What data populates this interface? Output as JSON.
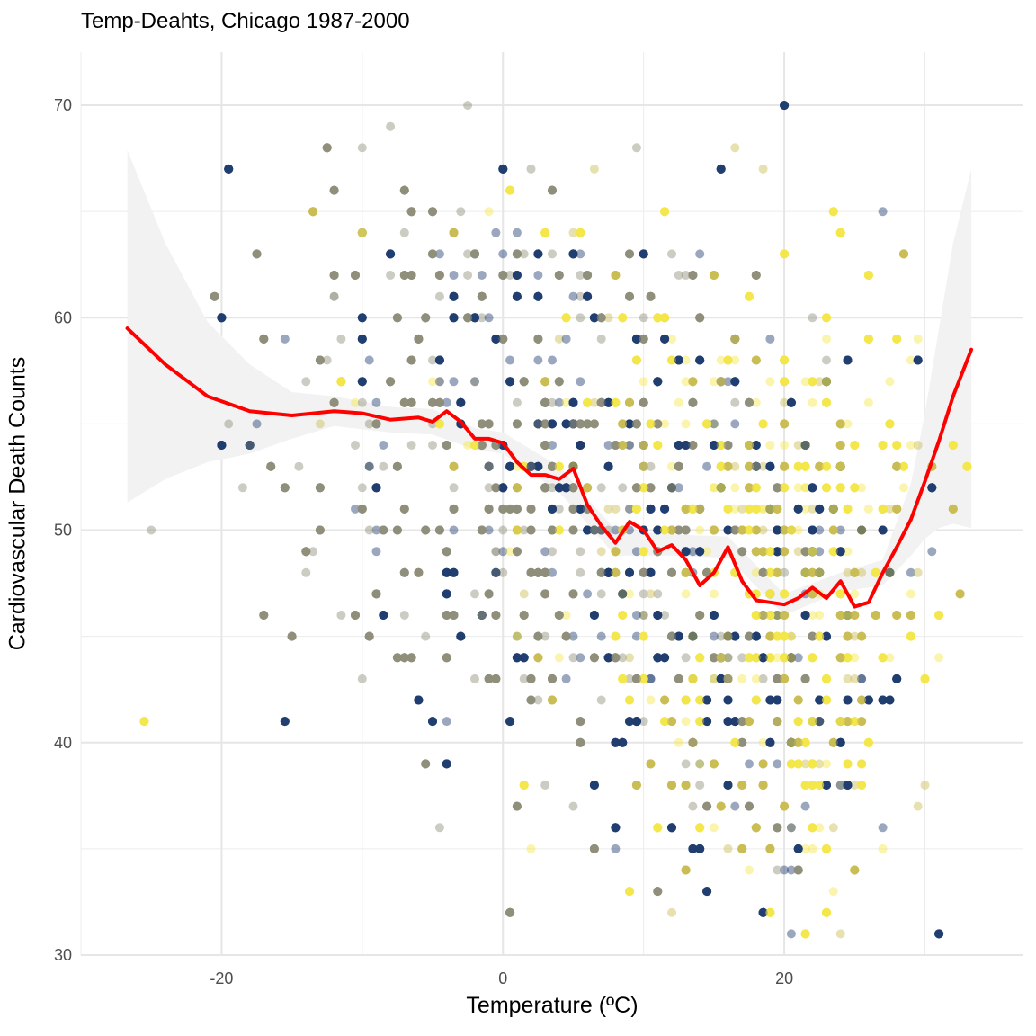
{
  "chart_data": {
    "type": "scatter",
    "title": "Temp-Deahts, Chicago 1987-2000",
    "xlabel": "Temperature (ºC)",
    "ylabel": "Cardiovascular Death Counts",
    "xlim": [
      -30,
      37
    ],
    "ylim": [
      30,
      72.5
    ],
    "x_ticks": [
      -20,
      0,
      20
    ],
    "x_tick_labels": [
      "-20",
      "0",
      "20"
    ],
    "y_ticks": [
      30,
      40,
      50,
      60,
      70
    ],
    "y_tick_labels": [
      "30",
      "40",
      "50",
      "60",
      "70"
    ],
    "grid": true,
    "legend": "none",
    "point_colors": [
      "#1f3b6e",
      "#8d8f7a",
      "#c9bd52",
      "#f5e64a"
    ],
    "point_alpha": 0.45,
    "n_points_approx": 5100,
    "scatter_series": {
      "description_units": "temperature (ºC) vs daily cardiovascular deaths, integer y",
      "y_range": [
        31,
        71
      ],
      "x_range": [
        -26.7,
        33.3
      ]
    },
    "smooth": {
      "name": "smoothed fit",
      "color": "#ff0000",
      "points": [
        [
          -26.7,
          59.5
        ],
        [
          -24,
          57.8
        ],
        [
          -21,
          56.3
        ],
        [
          -18,
          55.6
        ],
        [
          -15,
          55.4
        ],
        [
          -12,
          55.6
        ],
        [
          -10,
          55.5
        ],
        [
          -8,
          55.2
        ],
        [
          -6,
          55.3
        ],
        [
          -5,
          55.1
        ],
        [
          -4,
          55.6
        ],
        [
          -3,
          55.1
        ],
        [
          -2,
          54.3
        ],
        [
          -1,
          54.3
        ],
        [
          0,
          54.1
        ],
        [
          1,
          53.2
        ],
        [
          2,
          52.6
        ],
        [
          3,
          52.6
        ],
        [
          4,
          52.4
        ],
        [
          5,
          52.9
        ],
        [
          6,
          51.2
        ],
        [
          7,
          50.2
        ],
        [
          8,
          49.4
        ],
        [
          9,
          50.4
        ],
        [
          10,
          50.0
        ],
        [
          11,
          49.0
        ],
        [
          12,
          49.3
        ],
        [
          13,
          48.6
        ],
        [
          14,
          47.4
        ],
        [
          15,
          48.0
        ],
        [
          16,
          49.2
        ],
        [
          17,
          47.6
        ],
        [
          18,
          46.7
        ],
        [
          19,
          46.6
        ],
        [
          20,
          46.5
        ],
        [
          21,
          46.8
        ],
        [
          22,
          47.3
        ],
        [
          23,
          46.8
        ],
        [
          24,
          47.6
        ],
        [
          25,
          46.4
        ],
        [
          26,
          46.6
        ],
        [
          27,
          48.0
        ],
        [
          28,
          49.2
        ],
        [
          29,
          50.5
        ],
        [
          30,
          52.3
        ],
        [
          31,
          54.2
        ],
        [
          32,
          56.3
        ],
        [
          33.3,
          58.5
        ]
      ]
    },
    "confidence_band": {
      "color": "#f2f2f2",
      "upper": [
        [
          -26.7,
          67.9
        ],
        [
          -24,
          63.5
        ],
        [
          -21,
          59.8
        ],
        [
          -18,
          57.8
        ],
        [
          -15,
          56.5
        ],
        [
          -12,
          56.3
        ],
        [
          -8,
          55.8
        ],
        [
          -5,
          55.7
        ],
        [
          -2,
          54.8
        ],
        [
          0,
          54.6
        ],
        [
          4,
          53.0
        ],
        [
          8,
          50.0
        ],
        [
          12,
          49.8
        ],
        [
          16,
          49.7
        ],
        [
          20,
          47.0
        ],
        [
          24,
          48.0
        ],
        [
          27,
          48.6
        ],
        [
          29,
          52.2
        ],
        [
          30,
          55.5
        ],
        [
          31,
          59.5
        ],
        [
          32,
          63.5
        ],
        [
          33.3,
          67.0
        ]
      ],
      "lower": [
        [
          -26.7,
          51.3
        ],
        [
          -24,
          52.4
        ],
        [
          -21,
          53.2
        ],
        [
          -18,
          53.6
        ],
        [
          -15,
          54.3
        ],
        [
          -12,
          54.9
        ],
        [
          -8,
          54.6
        ],
        [
          -5,
          54.5
        ],
        [
          -2,
          53.8
        ],
        [
          0,
          53.6
        ],
        [
          4,
          51.8
        ],
        [
          8,
          48.8
        ],
        [
          12,
          48.8
        ],
        [
          16,
          48.7
        ],
        [
          20,
          46.0
        ],
        [
          24,
          47.1
        ],
        [
          27,
          47.4
        ],
        [
          29,
          48.8
        ],
        [
          30,
          49.6
        ],
        [
          31,
          50.1
        ],
        [
          32,
          50.3
        ],
        [
          33.3,
          50.1
        ]
      ]
    }
  }
}
